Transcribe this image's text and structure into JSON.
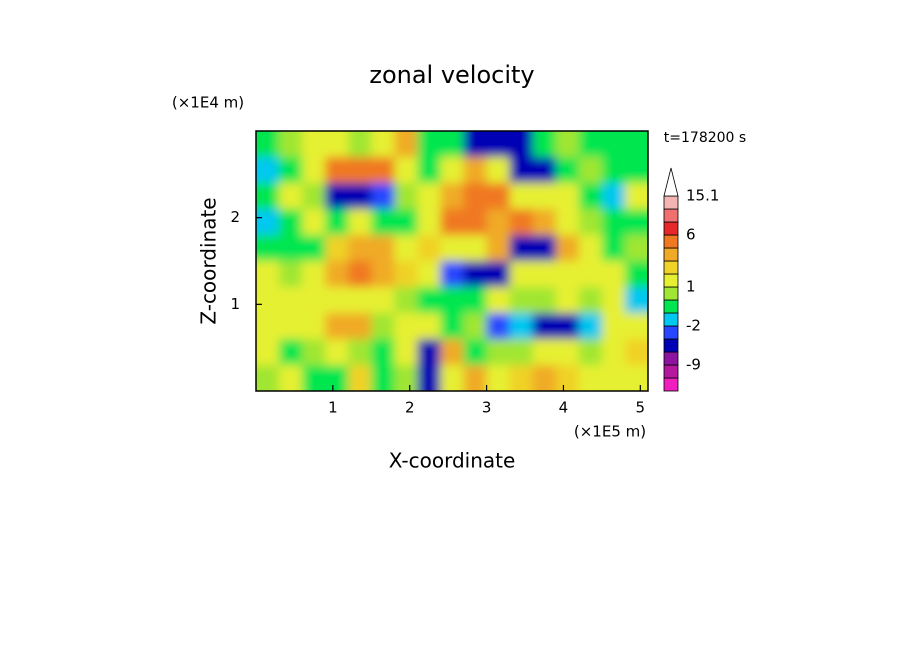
{
  "chart_data": {
    "type": "contour",
    "title": "zonal velocity",
    "time_label": "t=178200 s",
    "x_label": "X-coordinate",
    "y_label": "Z-coordinate",
    "x_unit": "(×1E5 m)",
    "y_unit": "(×1E4 m)",
    "xlim": [
      0,
      5.1
    ],
    "ylim": [
      0,
      3
    ],
    "xticks": [
      1,
      2,
      3,
      4,
      5
    ],
    "yticks": [
      1,
      2
    ],
    "x": [
      0.15,
      0.45,
      0.75,
      1.05,
      1.35,
      1.65,
      1.95,
      2.25,
      2.55,
      2.85,
      3.15,
      3.45,
      3.75,
      4.05,
      4.35,
      4.65,
      4.95
    ],
    "z": [
      2.85,
      2.55,
      2.25,
      1.95,
      1.65,
      1.35,
      1.05,
      0.75,
      0.45,
      0.15
    ],
    "values": [
      [
        -0.5,
        0.5,
        1.5,
        1.5,
        0.5,
        1.5,
        3.5,
        -0.5,
        -0.5,
        -5,
        -5,
        -5,
        -0.5,
        0.5,
        -0.5,
        -0.5,
        -0.5
      ],
      [
        -1.5,
        -0.5,
        1.5,
        5,
        5,
        5,
        1.5,
        -0.5,
        1.5,
        3.5,
        1.5,
        -5,
        -5,
        -0.5,
        0.5,
        -0.5,
        -0.5
      ],
      [
        -0.5,
        1.5,
        0.5,
        -5,
        -5,
        -3,
        0.5,
        1.5,
        3.5,
        5,
        5,
        1.5,
        1.5,
        1.5,
        -0.5,
        -1.5,
        1.5
      ],
      [
        -1.5,
        -0.5,
        1.5,
        -0.5,
        1.5,
        -0.5,
        -0.5,
        1.5,
        5,
        5,
        3.5,
        5,
        3.5,
        1.5,
        0.5,
        -0.5,
        -0.5
      ],
      [
        -0.5,
        -0.5,
        -0.5,
        2.5,
        3.5,
        3.5,
        1.5,
        2.5,
        1.5,
        1.5,
        3.5,
        -5,
        -5,
        3.5,
        1.5,
        -0.5,
        0.5
      ],
      [
        1.5,
        0.5,
        1.5,
        3.5,
        5,
        3.5,
        2.5,
        1.5,
        -3,
        -5,
        -5,
        1.5,
        1.5,
        1.5,
        1.5,
        1.5,
        -0.5
      ],
      [
        1.5,
        1.5,
        1.5,
        1.5,
        1.5,
        1.5,
        0.5,
        -0.5,
        -0.5,
        -0.5,
        1.5,
        0.5,
        0.5,
        1.5,
        0.5,
        1.5,
        -1.5
      ],
      [
        1.5,
        1.5,
        1.5,
        3.5,
        3.5,
        0.5,
        1.5,
        1.5,
        -0.5,
        0.5,
        -3,
        -1.5,
        -5,
        -5,
        -1.5,
        1.5,
        1.5
      ],
      [
        1.5,
        -0.5,
        0.5,
        1.5,
        0.5,
        -0.5,
        1.5,
        -5,
        3.5,
        -0.5,
        0.5,
        0.5,
        1.5,
        1.5,
        0.5,
        1.5,
        2.5
      ],
      [
        0.5,
        1.5,
        -0.5,
        -0.5,
        2.5,
        -0.5,
        0.5,
        -5,
        1.5,
        3.5,
        1.5,
        2.5,
        3.5,
        2.5,
        1.5,
        1.5,
        1.5
      ]
    ],
    "levels": [
      -15,
      -12,
      -9,
      -6,
      -4,
      -2,
      -1,
      0,
      1,
      2,
      3,
      4,
      6,
      9,
      12,
      15.1
    ],
    "colors": [
      "#f01ebe",
      "#b4189e",
      "#8c14a0",
      "#0000b4",
      "#2846ff",
      "#00c8f0",
      "#00e650",
      "#a0e632",
      "#e6f032",
      "#f0d228",
      "#f0aa28",
      "#f07820",
      "#e62828",
      "#f07070",
      "#f5b4b4"
    ],
    "colorbar_ticks": [
      15.1,
      6,
      1,
      -2,
      -9
    ]
  }
}
